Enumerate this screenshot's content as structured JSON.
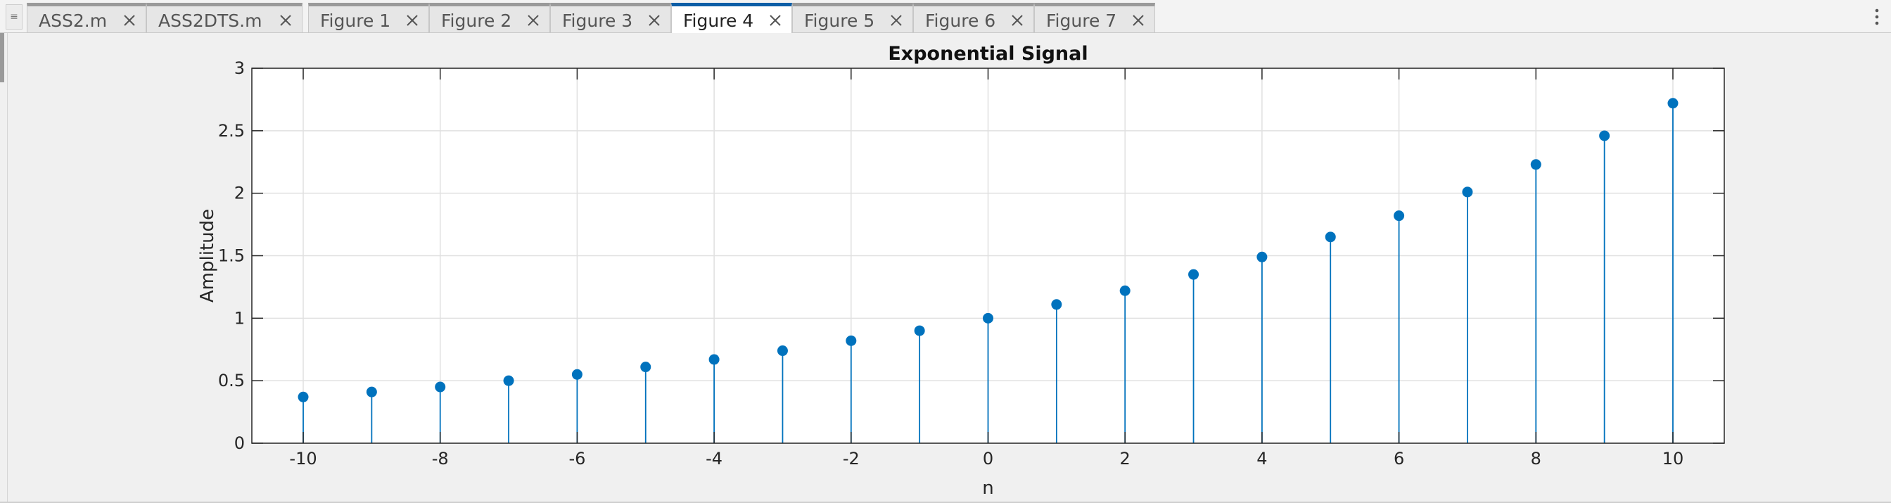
{
  "tabs": [
    {
      "label": "ASS2.m",
      "active": false
    },
    {
      "label": "ASS2DTS.m",
      "active": false
    },
    {
      "label": "Figure 1",
      "active": false
    },
    {
      "label": "Figure 2",
      "active": false
    },
    {
      "label": "Figure 3",
      "active": false
    },
    {
      "label": "Figure 4",
      "active": true
    },
    {
      "label": "Figure 5",
      "active": false
    },
    {
      "label": "Figure 6",
      "active": false
    },
    {
      "label": "Figure 7",
      "active": false
    }
  ],
  "colors": {
    "accent": "#0c5ea6",
    "stem": "#0072bd",
    "plot_bg": "#ffffff",
    "grid": "#e0e0e0"
  },
  "chart_data": {
    "type": "stem",
    "title": "Exponential Signal",
    "xlabel": "n",
    "ylabel": "Amplitude",
    "xlim": [
      -10.75,
      10.75
    ],
    "ylim": [
      0,
      3
    ],
    "xticks": [
      -10,
      -8,
      -6,
      -4,
      -2,
      0,
      2,
      4,
      6,
      8,
      10
    ],
    "xtick_labels": [
      "-10",
      "-8",
      "-6",
      "-4",
      "-2",
      "0",
      "2",
      "4",
      "6",
      "8",
      "10"
    ],
    "yticks": [
      0,
      0.5,
      1,
      1.5,
      2,
      2.5,
      3
    ],
    "ytick_labels": [
      "0",
      "0.5",
      "1",
      "1.5",
      "2",
      "2.5",
      "3"
    ],
    "grid": true,
    "x": [
      -10,
      -9,
      -8,
      -7,
      -6,
      -5,
      -4,
      -3,
      -2,
      -1,
      0,
      1,
      2,
      3,
      4,
      5,
      6,
      7,
      8,
      9,
      10
    ],
    "values": [
      0.37,
      0.41,
      0.45,
      0.5,
      0.55,
      0.61,
      0.67,
      0.74,
      0.82,
      0.9,
      1.0,
      1.11,
      1.22,
      1.35,
      1.49,
      1.65,
      1.82,
      2.01,
      2.23,
      2.46,
      2.72
    ]
  }
}
